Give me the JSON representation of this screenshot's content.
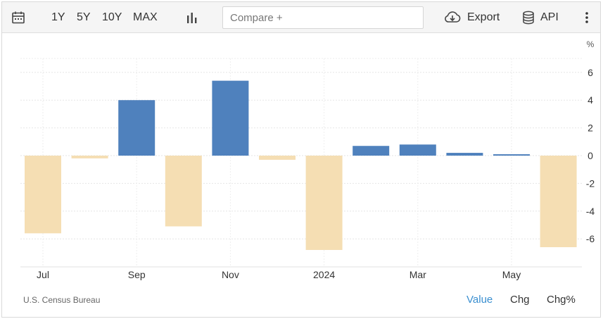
{
  "toolbar": {
    "ranges": [
      "1Y",
      "5Y",
      "10Y",
      "MAX"
    ],
    "compare_placeholder": "Compare +",
    "export_label": "Export",
    "api_label": "API"
  },
  "chart_data": {
    "type": "bar",
    "categories": [
      "Jul 2023",
      "Aug 2023",
      "Sep 2023",
      "Oct 2023",
      "Nov 2023",
      "Dec 2023",
      "Jan 2024",
      "Feb 2024",
      "Mar 2024",
      "Apr 2024",
      "May 2024",
      "Jun 2024"
    ],
    "values": [
      -5.6,
      -0.2,
      4.0,
      -5.1,
      5.4,
      -0.3,
      -6.8,
      0.7,
      0.8,
      0.2,
      0.1,
      -6.6
    ],
    "x_tick_labels": [
      "Jul",
      "Sep",
      "Nov",
      "2024",
      "Mar",
      "May"
    ],
    "x_tick_indices": [
      0,
      2,
      4,
      6,
      8,
      10
    ],
    "y_ticks": [
      6,
      4,
      2,
      0,
      -2,
      -4,
      -6
    ],
    "ylim": [
      -8,
      7
    ],
    "y_unit": "%",
    "positive_color": "#4f81bd",
    "negative_color": "#f5deb3",
    "grid": true
  },
  "footer": {
    "source": "U.S. Census Bureau",
    "modes": [
      "Value",
      "Chg",
      "Chg%"
    ],
    "active_mode": "Value"
  },
  "icons": [
    "calendar-icon",
    "bar-chart-icon",
    "cloud-download-icon",
    "database-icon",
    "more-vertical-icon"
  ]
}
